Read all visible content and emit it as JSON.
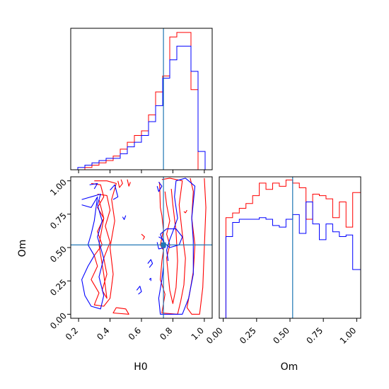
{
  "chart_data": [
    {
      "panel": "top-left",
      "type": "histogram",
      "parameter": "H0",
      "xlim": [
        0.15,
        1.05
      ],
      "truth": 0.74,
      "bin_edges": [
        0.15,
        0.195,
        0.24,
        0.285,
        0.33,
        0.375,
        0.42,
        0.465,
        0.51,
        0.555,
        0.6,
        0.645,
        0.69,
        0.735,
        0.78,
        0.825,
        0.87,
        0.915,
        0.96,
        1.005,
        1.05
      ],
      "series": [
        {
          "color": "#ff0000",
          "values": [
            0,
            0,
            1,
            2,
            3,
            4,
            6,
            9,
            12,
            15,
            17,
            24,
            34,
            41,
            58,
            60,
            60,
            35,
            0,
            0
          ]
        },
        {
          "color": "#0000ff",
          "values": [
            0,
            1,
            2,
            3,
            4,
            5,
            5,
            7,
            10,
            12,
            15,
            21,
            28,
            40,
            48,
            54,
            54,
            43,
            8,
            0
          ]
        }
      ]
    },
    {
      "panel": "bottom-right",
      "type": "histogram",
      "parameter": "Om",
      "xlabel": "Om",
      "xlim": [
        -0.03,
        1.03
      ],
      "xticks": [
        "0.00",
        "0.25",
        "0.50",
        "0.75",
        "1.00"
      ],
      "xtick_values": [
        0,
        0.25,
        0.5,
        0.75,
        1.0
      ],
      "truth": 0.52,
      "bin_edges": [
        -0.03,
        0.02,
        0.07,
        0.12,
        0.17,
        0.22,
        0.27,
        0.32,
        0.37,
        0.42,
        0.47,
        0.52,
        0.57,
        0.62,
        0.67,
        0.72,
        0.77,
        0.82,
        0.87,
        0.92,
        0.97,
        1.03
      ],
      "series": [
        {
          "color": "#ff0000",
          "values": [
            0,
            64,
            67,
            70,
            73,
            78,
            86,
            82,
            86,
            84,
            88,
            86,
            83,
            63,
            79,
            78,
            76,
            64,
            74,
            58,
            80
          ]
        },
        {
          "color": "#0000ff",
          "values": [
            0,
            52,
            61,
            63,
            63,
            63,
            64,
            63,
            59,
            58,
            63,
            66,
            54,
            74,
            60,
            50,
            60,
            55,
            52,
            53,
            31
          ]
        }
      ]
    },
    {
      "panel": "bottom-left",
      "type": "contour",
      "xlabel": "H0",
      "ylabel": "Om",
      "xlim": [
        0.15,
        1.05
      ],
      "ylim": [
        -0.03,
        1.03
      ],
      "xticks": [
        "0.2",
        "0.4",
        "0.6",
        "0.8",
        "1.0"
      ],
      "xtick_values": [
        0.2,
        0.4,
        0.6,
        0.8,
        1.0
      ],
      "yticks": [
        "0.00",
        "0.25",
        "0.50",
        "0.75",
        "1.00"
      ],
      "ytick_values": [
        0,
        0.25,
        0.5,
        0.75,
        1.0
      ],
      "truth": {
        "H0": 0.74,
        "Om": 0.52
      },
      "series": [
        {
          "color": "#ff0000",
          "contours": [
            [
              [
                0.28,
                0.98
              ],
              [
                0.34,
                0.97
              ],
              [
                0.36,
                0.88
              ],
              [
                0.32,
                0.8
              ],
              [
                0.36,
                0.72
              ],
              [
                0.32,
                0.62
              ],
              [
                0.35,
                0.52
              ],
              [
                0.3,
                0.44
              ],
              [
                0.32,
                0.36
              ],
              [
                0.28,
                0.26
              ],
              [
                0.33,
                0.16
              ],
              [
                0.3,
                0.07
              ],
              [
                0.36,
                0.06
              ],
              [
                0.4,
                0.12
              ],
              [
                0.42,
                0.3
              ],
              [
                0.4,
                0.5
              ],
              [
                0.43,
                0.7
              ],
              [
                0.41,
                0.86
              ],
              [
                0.44,
                0.98
              ],
              [
                0.38,
                1.0
              ],
              [
                0.3,
                1.0
              ]
            ],
            [
              [
                0.32,
                0.9
              ],
              [
                0.38,
                0.89
              ],
              [
                0.4,
                0.78
              ],
              [
                0.37,
                0.66
              ],
              [
                0.4,
                0.54
              ],
              [
                0.36,
                0.42
              ],
              [
                0.38,
                0.3
              ],
              [
                0.35,
                0.18
              ],
              [
                0.38,
                0.12
              ],
              [
                0.36,
                0.3
              ],
              [
                0.33,
                0.52
              ],
              [
                0.36,
                0.72
              ],
              [
                0.33,
                0.86
              ]
            ],
            [
              [
                0.44,
                0.05
              ],
              [
                0.5,
                0.04
              ],
              [
                0.52,
                0.0
              ],
              [
                0.42,
                0.01
              ],
              [
                0.44,
                0.05
              ]
            ],
            [
              [
                0.45,
                1.0
              ],
              [
                0.46,
                0.95
              ],
              [
                0.48,
                0.98
              ],
              [
                0.47,
                1.01
              ]
            ],
            [
              [
                0.51,
                1.01
              ],
              [
                0.52,
                0.96
              ],
              [
                0.53,
                0.99
              ]
            ],
            [
              [
                0.715,
                0.99
              ],
              [
                0.72,
                0.8
              ],
              [
                0.73,
                0.74
              ],
              [
                0.74,
                0.63
              ],
              [
                0.72,
                0.52
              ],
              [
                0.74,
                0.48
              ],
              [
                0.73,
                0.4
              ],
              [
                0.72,
                0.26
              ],
              [
                0.75,
                0.15
              ],
              [
                0.73,
                0.01
              ],
              [
                0.83,
                0.0
              ],
              [
                0.85,
                0.1
              ],
              [
                0.87,
                0.22
              ],
              [
                0.88,
                0.42
              ],
              [
                0.86,
                0.6
              ],
              [
                0.84,
                0.82
              ],
              [
                0.86,
                1.0
              ],
              [
                0.78,
                1.02
              ],
              [
                0.73,
                1.01
              ]
            ],
            [
              [
                0.75,
                0.92
              ],
              [
                0.76,
                0.82
              ],
              [
                0.78,
                0.7
              ],
              [
                0.76,
                0.6
              ],
              [
                0.78,
                0.52
              ],
              [
                0.76,
                0.42
              ],
              [
                0.77,
                0.3
              ],
              [
                0.78,
                0.18
              ],
              [
                0.8,
                0.08
              ],
              [
                0.82,
                0.2
              ],
              [
                0.83,
                0.4
              ],
              [
                0.82,
                0.62
              ],
              [
                0.8,
                0.82
              ],
              [
                0.79,
                0.94
              ]
            ],
            [
              [
                0.87,
                0.77
              ],
              [
                0.88,
                0.76
              ],
              [
                0.89,
                0.78
              ]
            ],
            [
              [
                0.91,
                1.02
              ],
              [
                0.93,
                0.92
              ],
              [
                0.92,
                0.72
              ],
              [
                0.94,
                0.52
              ],
              [
                0.93,
                0.32
              ],
              [
                0.91,
                0.18
              ],
              [
                0.89,
                0.05
              ],
              [
                0.92,
                0.0
              ],
              [
                0.97,
                0.0
              ],
              [
                0.99,
                0.2
              ],
              [
                1.0,
                0.5
              ],
              [
                1.01,
                0.8
              ],
              [
                1.0,
                1.02
              ]
            ],
            [
              [
                0.6,
                0.6
              ],
              [
                0.62,
                0.58
              ],
              [
                0.61,
                0.56
              ]
            ]
          ]
        },
        {
          "color": "#0000ff",
          "contours": [
            [
              [
                0.22,
                0.82
              ],
              [
                0.28,
                0.8
              ],
              [
                0.32,
                0.88
              ],
              [
                0.3,
                0.7
              ],
              [
                0.28,
                0.6
              ],
              [
                0.26,
                0.52
              ],
              [
                0.3,
                0.44
              ],
              [
                0.26,
                0.36
              ],
              [
                0.22,
                0.26
              ],
              [
                0.24,
                0.14
              ],
              [
                0.28,
                0.06
              ],
              [
                0.34,
                0.04
              ],
              [
                0.36,
                0.14
              ],
              [
                0.33,
                0.28
              ],
              [
                0.36,
                0.42
              ],
              [
                0.32,
                0.58
              ],
              [
                0.35,
                0.7
              ],
              [
                0.32,
                0.82
              ],
              [
                0.34,
                0.9
              ],
              [
                0.28,
                0.88
              ],
              [
                0.22,
                0.86
              ]
            ],
            [
              [
                0.4,
                0.93
              ],
              [
                0.43,
                0.97
              ],
              [
                0.45,
                0.88
              ],
              [
                0.42,
                0.86
              ]
            ],
            [
              [
                0.27,
                0.97
              ],
              [
                0.32,
                0.98
              ],
              [
                0.3,
                0.94
              ]
            ],
            [
              [
                0.48,
                0.73
              ],
              [
                0.49,
                0.71
              ],
              [
                0.5,
                0.74
              ]
            ],
            [
              [
                0.74,
                0.36
              ],
              [
                0.73,
                0.26
              ],
              [
                0.71,
                0.12
              ],
              [
                0.72,
                0.0
              ],
              [
                0.86,
                0.0
              ],
              [
                0.9,
                0.12
              ],
              [
                0.93,
                0.3
              ],
              [
                0.93,
                0.55
              ],
              [
                0.92,
                0.72
              ],
              [
                0.94,
                0.96
              ],
              [
                0.88,
                1.02
              ],
              [
                0.82,
                1.0
              ],
              [
                0.81,
                0.88
              ],
              [
                0.83,
                0.72
              ],
              [
                0.8,
                0.62
              ],
              [
                0.78,
                0.56
              ],
              [
                0.76,
                0.48
              ],
              [
                0.77,
                0.4
              ]
            ],
            [
              [
                0.72,
                0.6
              ],
              [
                0.76,
                0.64
              ],
              [
                0.82,
                0.64
              ],
              [
                0.86,
                0.58
              ],
              [
                0.84,
                0.52
              ],
              [
                0.78,
                0.5
              ],
              [
                0.74,
                0.54
              ],
              [
                0.72,
                0.6
              ]
            ],
            [
              [
                0.71,
                0.58
              ],
              [
                0.74,
                0.56
              ],
              [
                0.75,
                0.5
              ],
              [
                0.71,
                0.49
              ],
              [
                0.7,
                0.54
              ]
            ],
            [
              [
                0.71,
                0.99
              ],
              [
                0.73,
                0.96
              ],
              [
                0.71,
                0.92
              ],
              [
                0.7,
                0.96
              ]
            ],
            [
              [
                0.64,
                0.38
              ],
              [
                0.66,
                0.41
              ],
              [
                0.67,
                0.38
              ],
              [
                0.65,
                0.35
              ]
            ],
            [
              [
                0.57,
                0.18
              ],
              [
                0.59,
                0.21
              ],
              [
                0.6,
                0.17
              ],
              [
                0.58,
                0.15
              ]
            ],
            [
              [
                0.65,
                0.26
              ],
              [
                0.66,
                0.27
              ],
              [
                0.66,
                0.25
              ]
            ]
          ]
        }
      ]
    }
  ]
}
